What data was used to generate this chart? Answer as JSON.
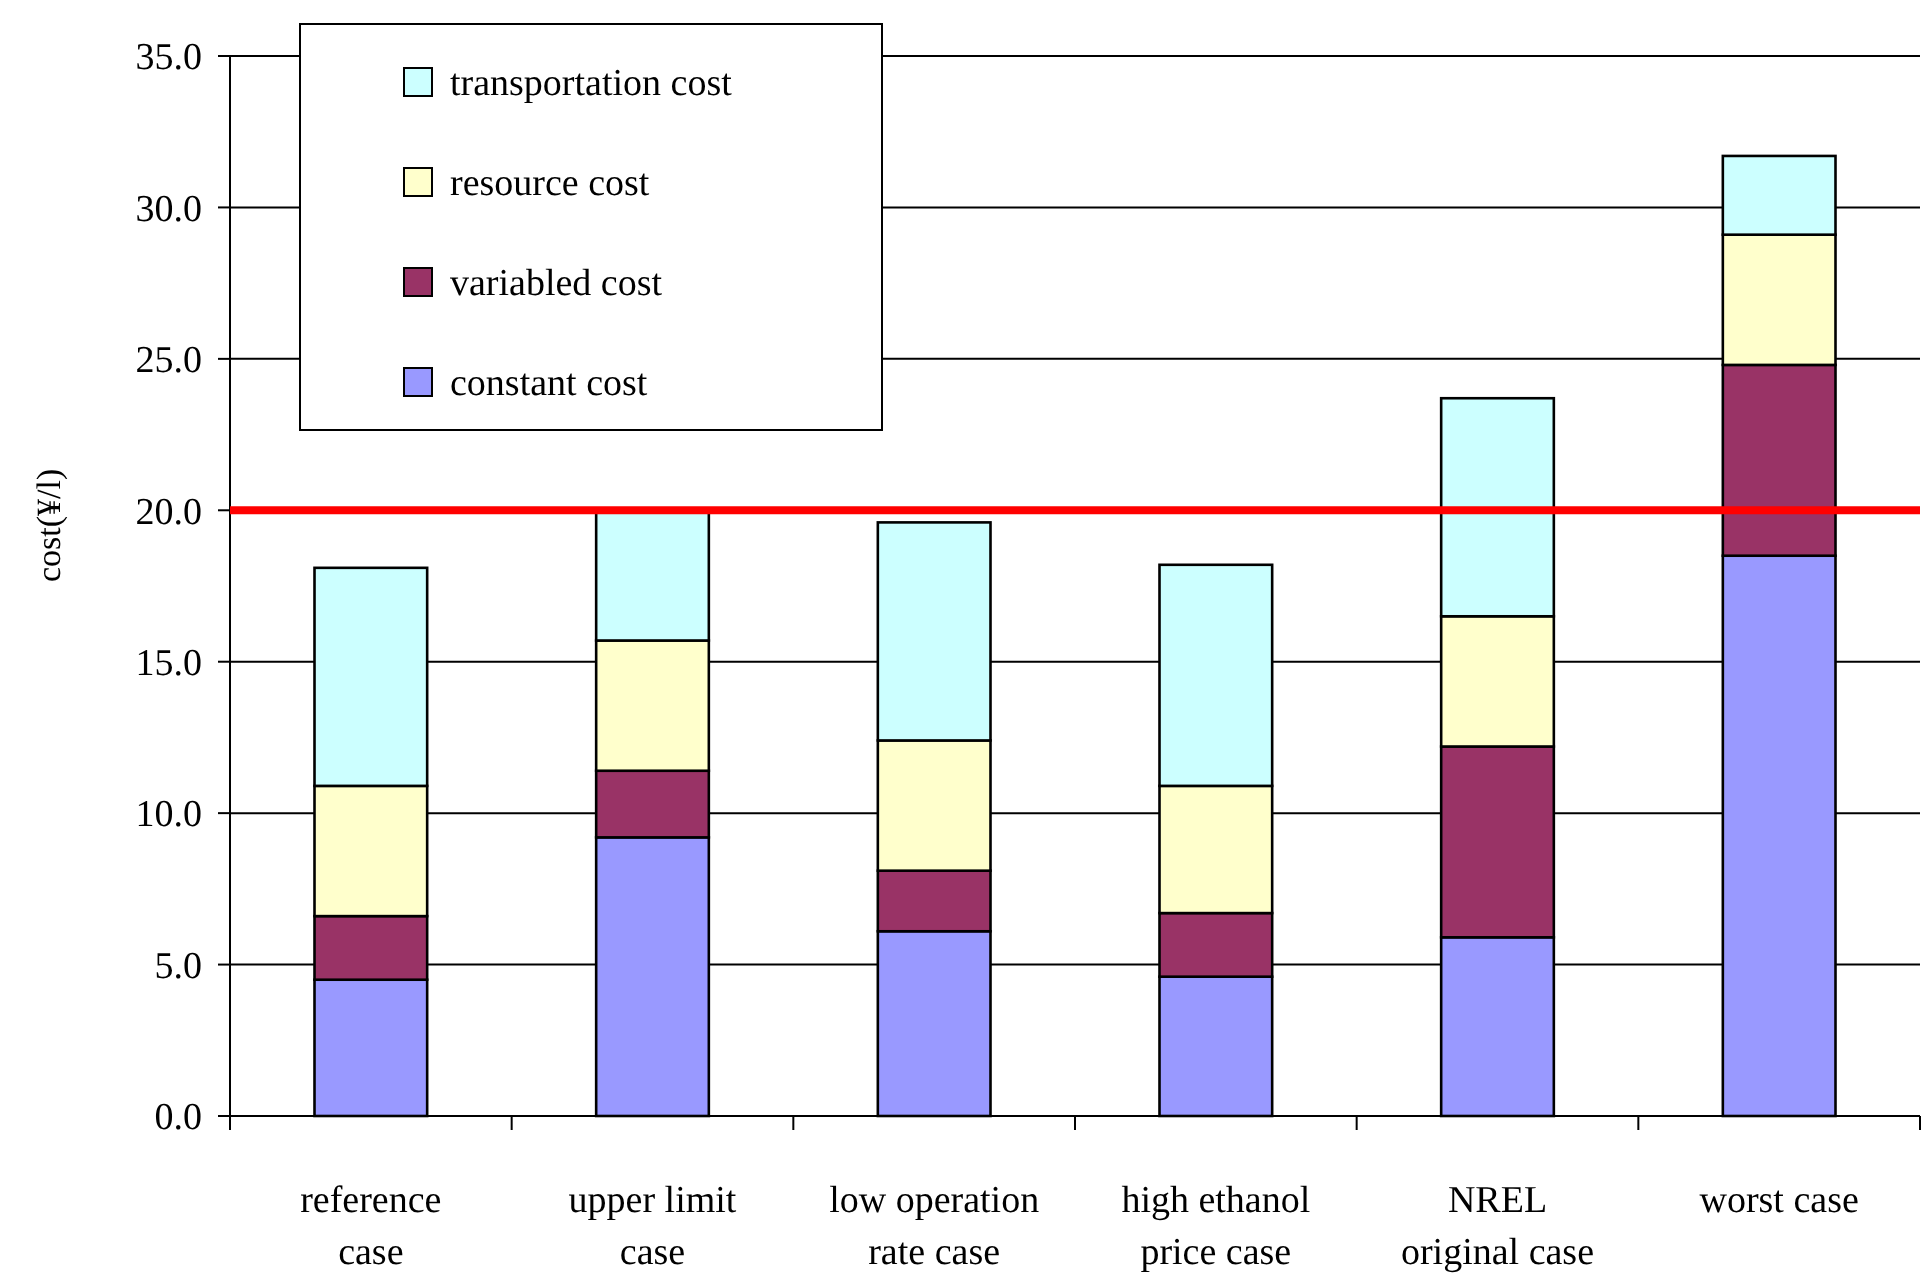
{
  "chart_data": {
    "type": "bar",
    "stacked": true,
    "ylabel": "cost(¥/l)",
    "categories": [
      "reference\ncase",
      "upper limit\ncase",
      "low operation\nrate case",
      "high ethanol\nprice case",
      "NREL\noriginal case",
      "worst case"
    ],
    "series": [
      {
        "name": "constant cost",
        "color": "#9999ff",
        "values": [
          4.5,
          9.2,
          6.1,
          4.6,
          5.9,
          18.5
        ]
      },
      {
        "name": "variabled cost",
        "color": "#993366",
        "values": [
          2.1,
          2.2,
          2.0,
          2.1,
          6.3,
          6.3
        ]
      },
      {
        "name": "resource cost",
        "color": "#ffffcc",
        "values": [
          4.3,
          4.3,
          4.3,
          4.2,
          4.3,
          4.3
        ]
      },
      {
        "name": "transportation cost",
        "color": "#ccffff",
        "values": [
          7.2,
          4.3,
          7.2,
          7.3,
          7.2,
          2.6
        ]
      }
    ],
    "ylim": [
      0,
      35
    ],
    "yticks": [
      {
        "value": 0,
        "label": "0.0"
      },
      {
        "value": 5,
        "label": "5.0"
      },
      {
        "value": 10,
        "label": "10.0"
      },
      {
        "value": 15,
        "label": "15.0"
      },
      {
        "value": 20,
        "label": "20.0"
      },
      {
        "value": 25,
        "label": "25.0"
      },
      {
        "value": 30,
        "label": "30.0"
      },
      {
        "value": 35,
        "label": "35.0"
      }
    ],
    "grid": "y",
    "legend": "top left",
    "ref_lines": [
      {
        "axis": "y",
        "value": 20,
        "color": "#ff0000"
      }
    ]
  }
}
